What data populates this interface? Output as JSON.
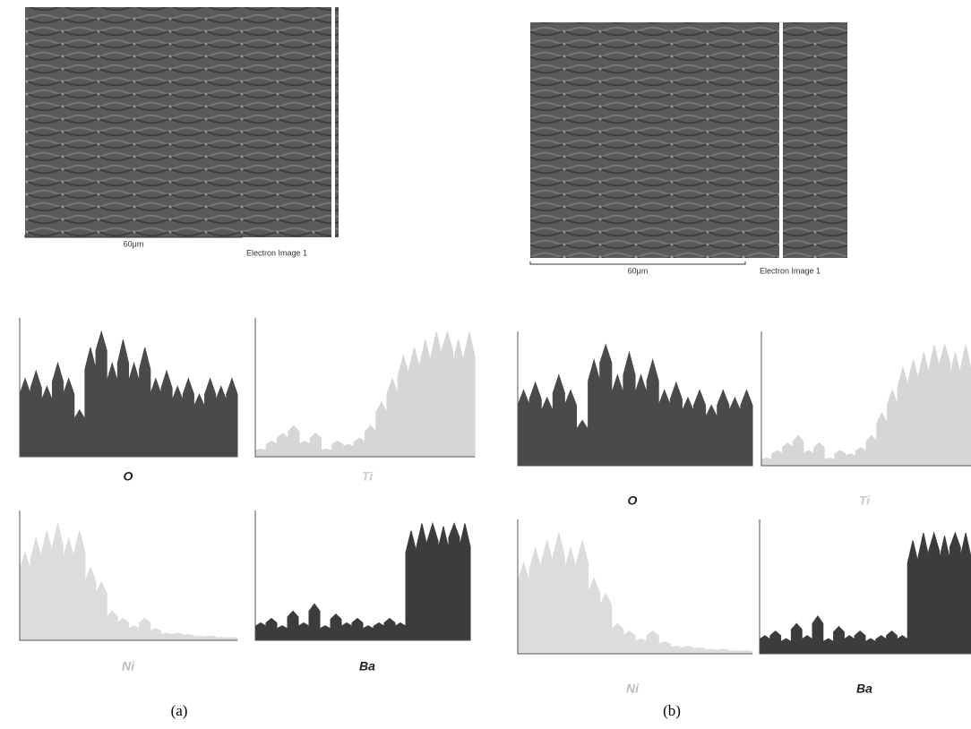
{
  "panels": [
    {
      "image": {
        "scale_bar": "60μm",
        "label": "Electron Image 1"
      },
      "plots": [
        {
          "element": "O"
        },
        {
          "element": "Ti"
        },
        {
          "element": "Ni"
        },
        {
          "element": "Ba"
        }
      ],
      "caption": "(a)"
    },
    {
      "image": {
        "scale_bar": "60μm",
        "label": "Electron Image 1"
      },
      "plots": [
        {
          "element": "O"
        },
        {
          "element": "Ti"
        },
        {
          "element": "Ni"
        },
        {
          "element": "Ba"
        }
      ],
      "caption": "(b)"
    }
  ]
}
